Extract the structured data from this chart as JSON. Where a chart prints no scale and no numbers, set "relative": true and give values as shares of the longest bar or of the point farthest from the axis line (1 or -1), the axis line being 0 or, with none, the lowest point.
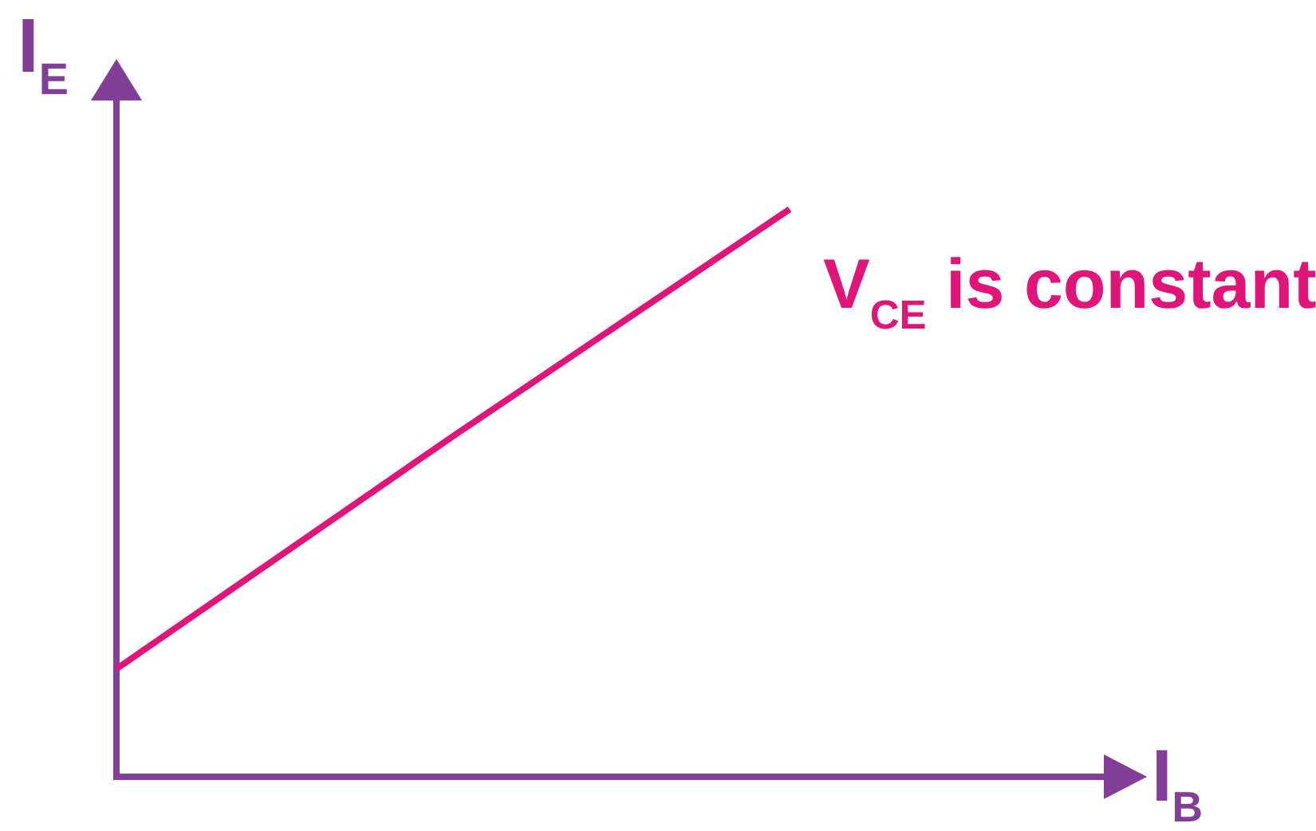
{
  "chart_data": {
    "type": "line",
    "xlabel": "I$_{B}$",
    "ylabel": "I$_{E}$",
    "categories": [
      null,
      null,
      null,
      null
    ],
    "series": [
      {
        "name": "V$_{CE}$ is constant",
        "color": "#e0157a",
        "values": [
          0.19,
          0.6,
          1,
          null
        ]
      }
    ],
    "relative": true,
    "marker": "none",
    "line_style": "solid"
  }
}
